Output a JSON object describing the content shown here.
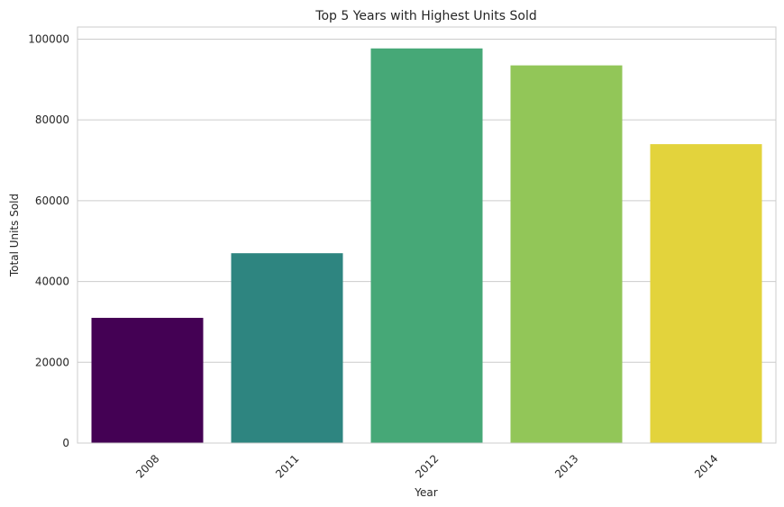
{
  "chart_data": {
    "type": "bar",
    "title": "Top 5 Years with Highest Units Sold",
    "xlabel": "Year",
    "ylabel": "Total Units Sold",
    "categories": [
      "2008",
      "2011",
      "2012",
      "2013",
      "2014"
    ],
    "values": [
      31000,
      47000,
      97700,
      93500,
      74000
    ],
    "colors": [
      "#440154",
      "#2e8580",
      "#46a877",
      "#92c658",
      "#e3d33c"
    ],
    "ylim": [
      0,
      103000
    ],
    "yticks": [
      0,
      20000,
      40000,
      60000,
      80000,
      100000
    ],
    "ytick_labels": [
      "0",
      "20000",
      "40000",
      "60000",
      "80000",
      "100000"
    ],
    "grid": true,
    "x_tick_rotation_deg": 45
  }
}
